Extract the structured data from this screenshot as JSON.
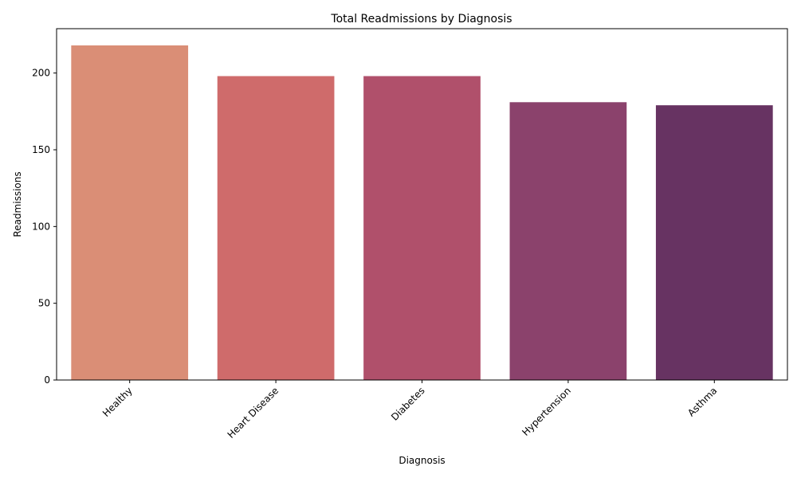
{
  "chart_data": {
    "type": "bar",
    "title": "Total Readmissions by Diagnosis",
    "xlabel": "Diagnosis",
    "ylabel": "Readmissions",
    "categories": [
      "Healthy",
      "Heart Disease",
      "Diabetes",
      "Hypertension",
      "Asthma"
    ],
    "values": [
      218,
      198,
      198,
      181,
      179
    ],
    "colors": [
      "#da8e76",
      "#cf6b6b",
      "#b0506b",
      "#8b426c",
      "#673362"
    ],
    "ylim": [
      0,
      228.9
    ],
    "yticks": [
      0,
      50,
      100,
      150,
      200
    ],
    "grid": false,
    "legend": "none",
    "xtick_rotation": 45
  }
}
